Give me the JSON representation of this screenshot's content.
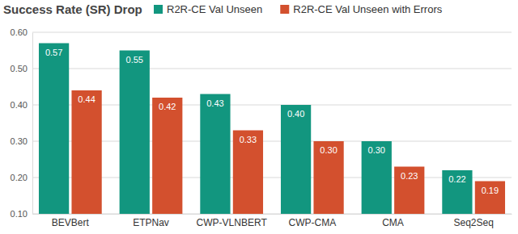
{
  "chart_data": {
    "type": "bar",
    "title": "Success Rate (SR) Drop",
    "categories": [
      "BEVBert",
      "ETPNav",
      "CWP-VLNBERT",
      "CWP-CMA",
      "CMA",
      "Seq2Seq"
    ],
    "series": [
      {
        "name": "R2R-CE Val Unseen",
        "color": "#12967f",
        "values": [
          0.57,
          0.55,
          0.43,
          0.4,
          0.3,
          0.22
        ],
        "value_labels": [
          "0.57",
          "0.55",
          "0.43",
          "0.40",
          "0.30",
          "0.22"
        ]
      },
      {
        "name": "R2R-CE Val Unseen with Errors",
        "color": "#d3502e",
        "values": [
          0.44,
          0.42,
          0.33,
          0.3,
          0.23,
          0.19
        ],
        "value_labels": [
          "0.44",
          "0.42",
          "0.33",
          "0.30",
          "0.23",
          "0.19"
        ]
      }
    ],
    "ylim": [
      0.1,
      0.6
    ],
    "yticks": [
      {
        "value": 0.1,
        "label": "0.10"
      },
      {
        "value": 0.2,
        "label": "0.20"
      },
      {
        "value": 0.3,
        "label": "0.30"
      },
      {
        "value": 0.4,
        "label": "0.40"
      },
      {
        "value": 0.5,
        "label": "0.50"
      },
      {
        "value": 0.6,
        "label": "0.60"
      }
    ],
    "grid": true,
    "legend": "top",
    "data_labels": true
  }
}
